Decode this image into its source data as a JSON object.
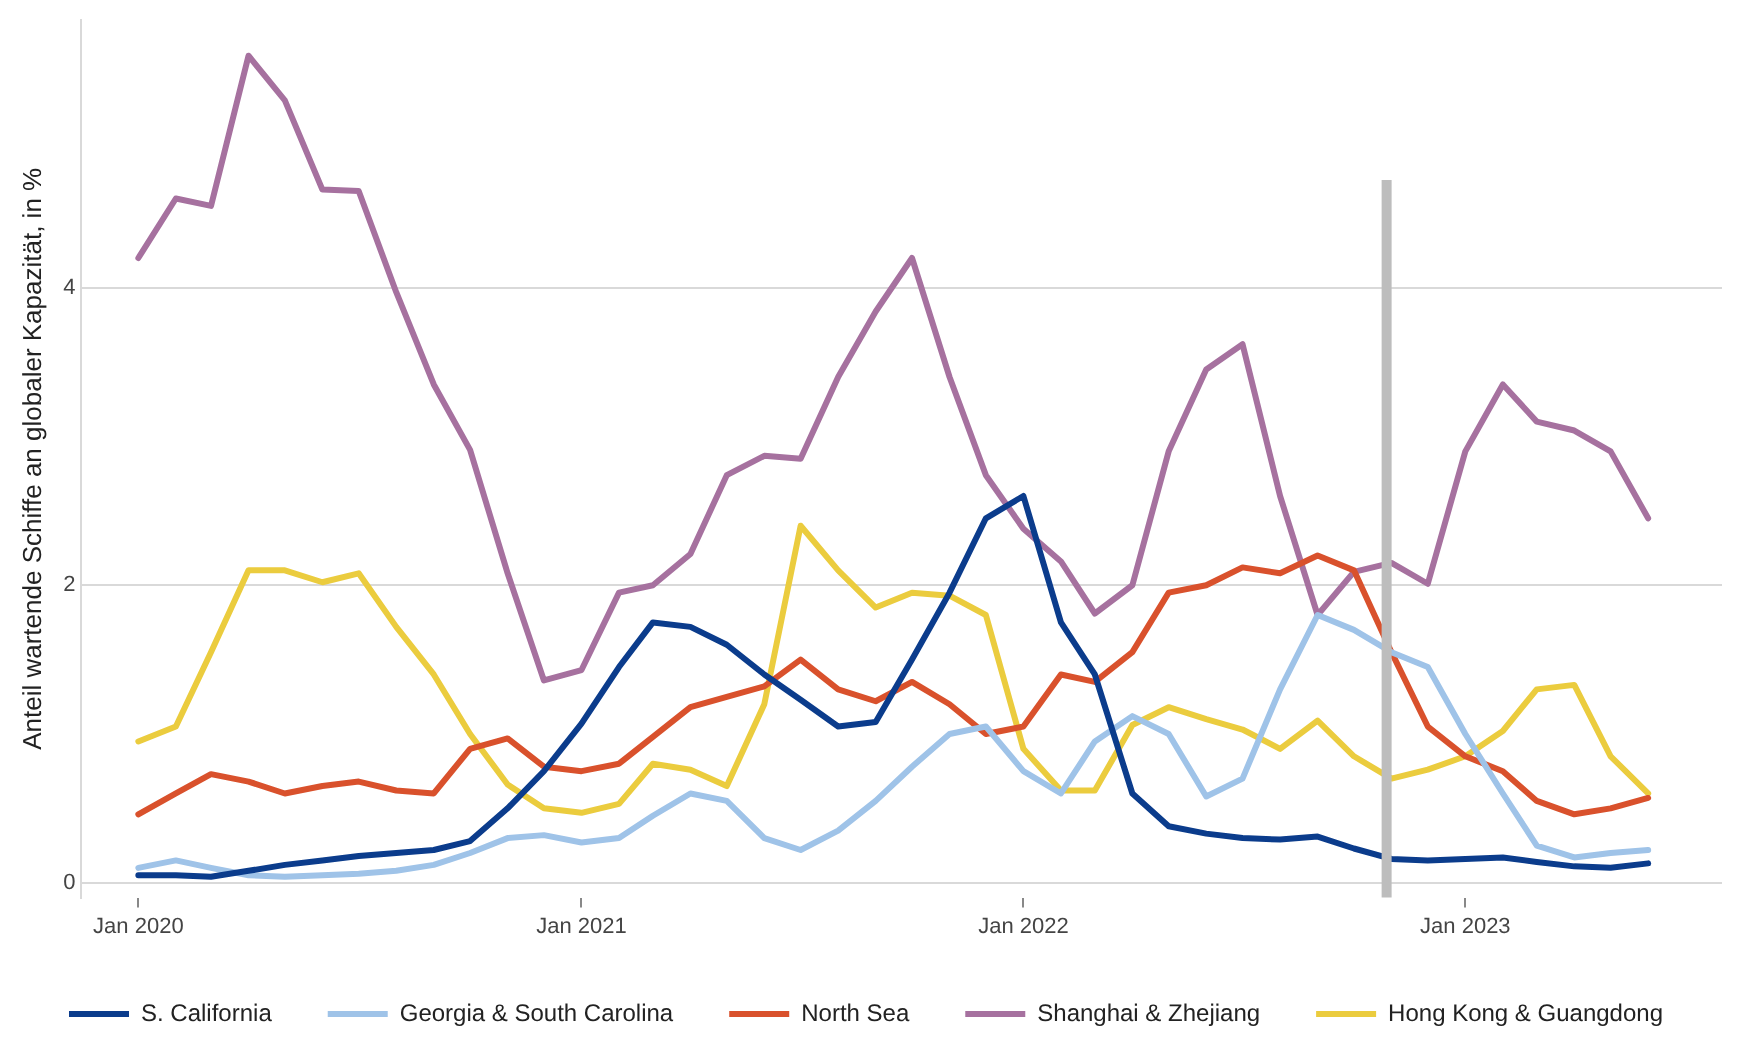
{
  "chart_data": {
    "type": "line",
    "ylabel": "Anteil wartende Schiffe an globaler Kapazität, in %",
    "x": [
      "2020-01",
      "2020-02",
      "2020-03",
      "2020-04",
      "2020-05",
      "2020-06",
      "2020-07",
      "2020-08",
      "2020-09",
      "2020-10",
      "2020-11",
      "2020-12",
      "2021-01",
      "2021-02",
      "2021-03",
      "2021-04",
      "2021-05",
      "2021-06",
      "2021-07",
      "2021-08",
      "2021-09",
      "2021-10",
      "2021-11",
      "2021-12",
      "2022-01",
      "2022-02",
      "2022-03",
      "2022-04",
      "2022-05",
      "2022-06",
      "2022-07",
      "2022-08",
      "2022-09",
      "2022-10",
      "2022-11",
      "2022-12",
      "2023-01",
      "2023-02",
      "2023-03",
      "2023-04",
      "2023-05",
      "2023-06"
    ],
    "series": [
      {
        "name": "S. California",
        "color": "#0b3c8c",
        "values": [
          0.05,
          0.05,
          0.04,
          0.08,
          0.12,
          0.15,
          0.18,
          0.2,
          0.22,
          0.28,
          0.5,
          0.75,
          1.07,
          1.45,
          1.75,
          1.72,
          1.6,
          1.4,
          1.23,
          1.05,
          1.08,
          1.5,
          1.95,
          2.45,
          2.6,
          1.75,
          1.4,
          0.6,
          0.38,
          0.33,
          0.3,
          0.29,
          0.31,
          0.23,
          0.16,
          0.15,
          0.16,
          0.17,
          0.14,
          0.11,
          0.1,
          0.13
        ]
      },
      {
        "name": "Georgia & South Carolina",
        "color": "#9fc3e8",
        "values": [
          0.1,
          0.15,
          0.1,
          0.05,
          0.04,
          0.05,
          0.06,
          0.08,
          0.12,
          0.2,
          0.3,
          0.32,
          0.27,
          0.3,
          0.45,
          0.6,
          0.55,
          0.3,
          0.22,
          0.35,
          0.55,
          0.78,
          1.0,
          1.05,
          0.75,
          0.6,
          0.95,
          1.12,
          1.0,
          0.58,
          0.7,
          1.3,
          1.8,
          1.7,
          1.55,
          1.45,
          1.0,
          0.6,
          0.25,
          0.17,
          0.2,
          0.22
        ]
      },
      {
        "name": "North Sea",
        "color": "#d9512c",
        "values": [
          0.46,
          0.6,
          0.73,
          0.68,
          0.6,
          0.65,
          0.68,
          0.62,
          0.6,
          0.9,
          0.97,
          0.78,
          0.75,
          0.8,
          0.98,
          1.18,
          1.25,
          1.32,
          1.5,
          1.3,
          1.22,
          1.35,
          1.2,
          1.0,
          1.05,
          1.4,
          1.35,
          1.55,
          1.95,
          2.0,
          2.12,
          2.08,
          2.2,
          2.1,
          1.55,
          1.05,
          0.85,
          0.75,
          0.55,
          0.46,
          0.5,
          0.57
        ]
      },
      {
        "name": "Shanghai & Zhejiang",
        "color": "#a6719f",
        "values": [
          4.2,
          4.6,
          4.55,
          5.56,
          5.26,
          4.66,
          4.65,
          3.97,
          3.35,
          2.91,
          2.08,
          1.36,
          1.43,
          1.95,
          2.0,
          2.21,
          2.74,
          2.87,
          2.85,
          3.4,
          3.84,
          4.2,
          3.4,
          2.74,
          2.38,
          2.16,
          1.81,
          2.0,
          2.9,
          3.45,
          3.62,
          2.6,
          1.8,
          2.09,
          2.15,
          2.01,
          2.9,
          3.35,
          3.1,
          3.04,
          2.9,
          2.45
        ]
      },
      {
        "name": "Hong Kong & Guangdong",
        "color": "#ebcc3e",
        "values": [
          0.95,
          1.05,
          1.55,
          2.1,
          2.1,
          2.02,
          2.08,
          1.72,
          1.4,
          1.0,
          0.66,
          0.5,
          0.47,
          0.53,
          0.8,
          0.76,
          0.65,
          1.2,
          2.4,
          2.1,
          1.85,
          1.95,
          1.93,
          1.8,
          0.9,
          0.62,
          0.62,
          1.06,
          1.18,
          1.1,
          1.03,
          0.9,
          1.09,
          0.85,
          0.7,
          0.76,
          0.85,
          1.02,
          1.3,
          1.33,
          0.85,
          0.6
        ]
      }
    ],
    "xlim": [
      "2019-11-15",
      "2023-08-01"
    ],
    "xticks": [
      {
        "value": "2020-01",
        "label": "Jan 2020"
      },
      {
        "value": "2021-01",
        "label": "Jan 2021"
      },
      {
        "value": "2022-01",
        "label": "Jan 2022"
      },
      {
        "value": "2023-01",
        "label": "Jan 2023"
      }
    ],
    "ylim": [
      -0.1,
      5.8
    ],
    "yticks": [
      0,
      2,
      4
    ],
    "grid": "y",
    "legend": "bottom",
    "marker": "none",
    "line_style": "solid",
    "ref_lines": [
      {
        "axis": "x",
        "value": "2022-10-28",
        "color": "#bdbdbd"
      }
    ]
  }
}
